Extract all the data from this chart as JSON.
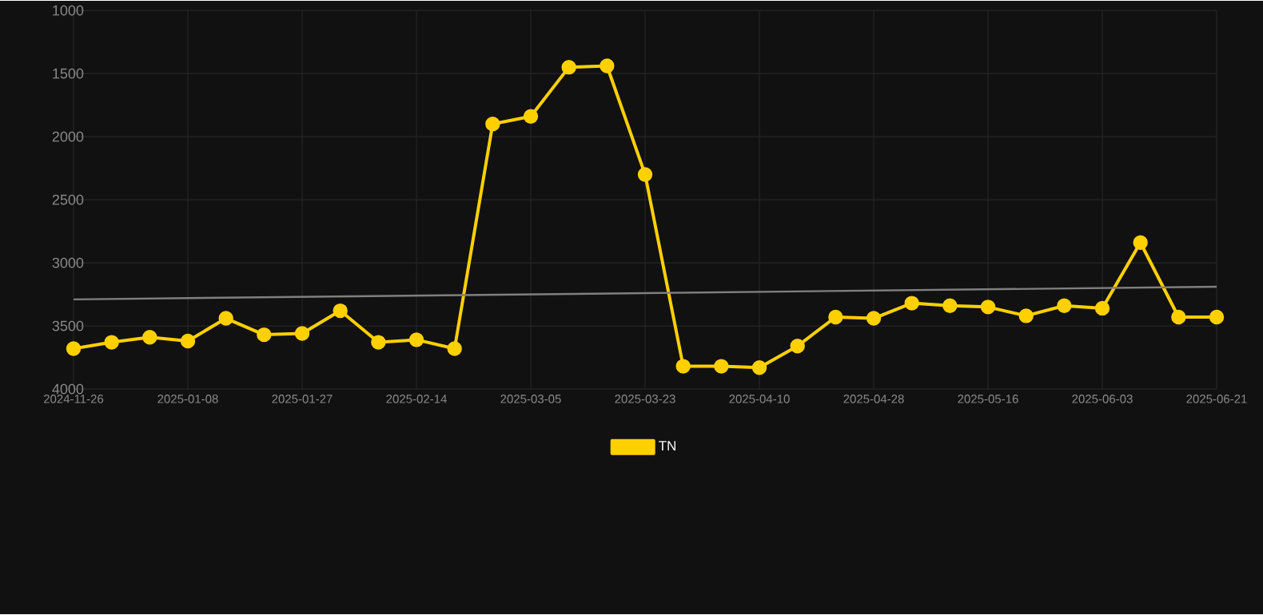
{
  "chart_data": {
    "type": "line",
    "categories": [
      "2024-11-26",
      null,
      null,
      "2025-01-08",
      null,
      null,
      "2025-01-27",
      null,
      null,
      "2025-02-14",
      null,
      null,
      "2025-03-05",
      null,
      null,
      "2025-03-23",
      null,
      null,
      "2025-04-10",
      null,
      null,
      "2025-04-28",
      null,
      null,
      "2025-05-16",
      null,
      null,
      "2025-06-03",
      null,
      null,
      "2025-06-21"
    ],
    "series": [
      {
        "name": "TN",
        "color": "#ffd000",
        "marker": "circle",
        "values": [
          3680,
          3630,
          3590,
          3620,
          3440,
          3570,
          3560,
          3380,
          3630,
          3610,
          3680,
          1900,
          1840,
          1450,
          1440,
          2300,
          3820,
          3820,
          3830,
          3660,
          3430,
          3440,
          3320,
          3340,
          3350,
          3420,
          3340,
          3360,
          2840,
          3430,
          3430
        ]
      },
      {
        "type": "line",
        "color": "#808080",
        "marker": "none",
        "values": [
          3290,
          null,
          null,
          null,
          null,
          null,
          null,
          null,
          null,
          null,
          null,
          null,
          null,
          null,
          null,
          null,
          null,
          null,
          null,
          null,
          null,
          null,
          null,
          null,
          null,
          null,
          null,
          null,
          null,
          null,
          3190
        ]
      }
    ],
    "ylim": [
      4000,
      1000
    ],
    "yticks": [
      1000,
      1500,
      2000,
      2500,
      3000,
      3500,
      4000
    ],
    "grid": true,
    "legend": "bottom",
    "line_style": "solid"
  }
}
